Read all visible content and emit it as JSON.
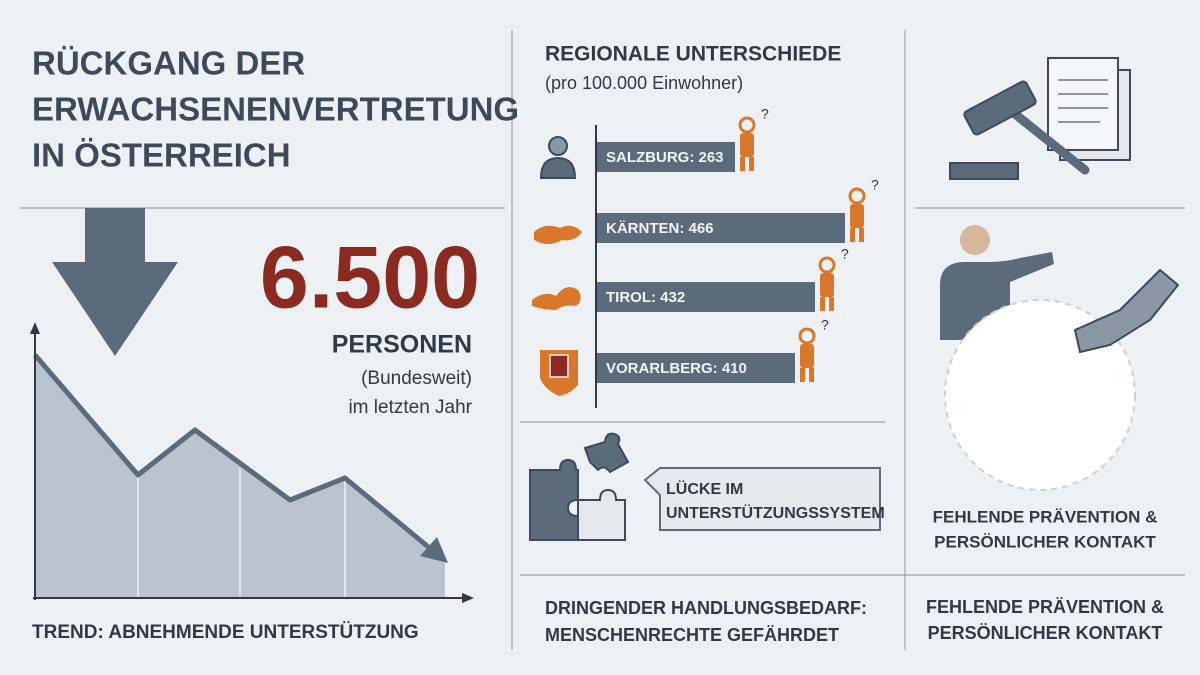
{
  "title": {
    "lines": [
      "RÜCKGANG DER",
      "ERWACHSENENVERTRETUNG",
      "IN ÖSTERREICH"
    ]
  },
  "headline_figure": {
    "value": "6.500",
    "unit": "PERSONEN",
    "scope": "(Bundesweit)",
    "period": "im letzten Jahr"
  },
  "trend_caption": "TREND: ABNEHMENDE UNTERSTÜTZUNG",
  "regional": {
    "title": "REGIONALE UNTERSCHIEDE",
    "subtitle": "(pro 100.000 Einwohner)",
    "rows": [
      "SALZBURG: 263",
      "KÄRNTEN: 466",
      "TIROL: 432",
      "VORARLBERG: 410"
    ],
    "marker": "?"
  },
  "gap_callout": {
    "lines": [
      "LÜCKE IM",
      "UNTERSTÜTZUNGSSYSTEM"
    ]
  },
  "urgent_caption": {
    "lines": [
      "DRINGENDER HANDLUNGSBEDARF:",
      "MENSCHENRECHTE GEFÄHRDET"
    ]
  },
  "prevention_panel": {
    "lines": [
      "FEHLENDE PRÄVENTION &",
      "PERSÖNLICHER KONTAKT"
    ]
  },
  "footer_right": {
    "lines": [
      "FEHLENDE PRÄVENTION &",
      "PERSÖNLICHER KONTAKT"
    ]
  }
}
